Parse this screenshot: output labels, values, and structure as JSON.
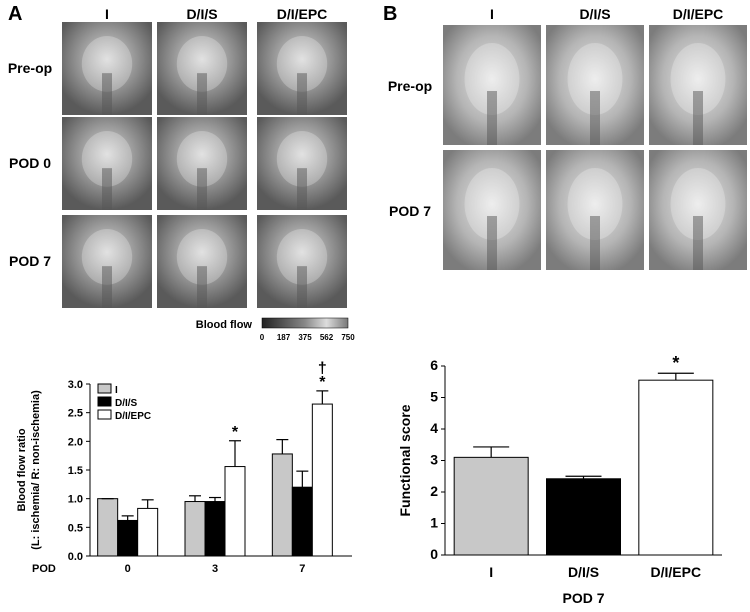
{
  "panel_a": {
    "label": "A",
    "columns": [
      "I",
      "D/I/S",
      "D/I/EPC"
    ],
    "rows": [
      "Pre-op",
      "POD 0",
      "POD 7"
    ],
    "colorbar": {
      "title": "Blood flow",
      "ticks": [
        "0",
        "187",
        "375",
        "562",
        "750"
      ]
    }
  },
  "panel_b": {
    "label": "B",
    "columns": [
      "I",
      "D/I/S",
      "D/I/EPC"
    ],
    "rows": [
      "Pre-op",
      "POD 7"
    ]
  },
  "chart_data": [
    {
      "type": "bar",
      "ylabel": [
        "Blood flow ratio",
        "(L: ischemia/ R: non-ischemia)"
      ],
      "xlabel": "POD",
      "categories": [
        "0",
        "3",
        "7"
      ],
      "series": [
        {
          "name": "I",
          "color": "#c8c8c8",
          "values": [
            1.0,
            0.95,
            1.78
          ],
          "errors": [
            0,
            0.1,
            0.25
          ],
          "annotations": [
            null,
            null,
            null
          ]
        },
        {
          "name": "D/I/S",
          "color": "#000000",
          "values": [
            0.62,
            0.95,
            1.2
          ],
          "errors": [
            0.08,
            0.07,
            0.28
          ],
          "annotations": [
            null,
            null,
            null
          ]
        },
        {
          "name": "D/I/EPC",
          "color": "#ffffff",
          "values": [
            0.83,
            1.56,
            2.65
          ],
          "errors": [
            0.15,
            0.45,
            0.23
          ],
          "annotations": [
            null,
            [
              "*"
            ],
            [
              "*",
              "†"
            ]
          ]
        }
      ],
      "ylim": [
        0,
        3
      ],
      "yticks": [
        {
          "value": 0,
          "label": "0.0"
        },
        {
          "value": 0.5,
          "label": "0.5"
        },
        {
          "value": 1,
          "label": "1.0"
        },
        {
          "value": 1.5,
          "label": "1.5"
        },
        {
          "value": 2,
          "label": "2.0"
        },
        {
          "value": 2.5,
          "label": "2.5"
        },
        {
          "value": 3,
          "label": "3.0"
        }
      ],
      "legend": "upper left"
    },
    {
      "type": "bar",
      "ylabel": [
        "Functional score"
      ],
      "xlabel": "POD 7",
      "categories": [
        "I",
        "D/I/S",
        "D/I/EPC"
      ],
      "values": [
        3.1,
        2.42,
        5.55
      ],
      "errors": [
        0.33,
        0.08,
        0.22
      ],
      "colors": [
        "#c8c8c8",
        "#000000",
        "#ffffff"
      ],
      "annotations": [
        null,
        null,
        "*"
      ],
      "ylim": [
        0,
        6
      ],
      "yticks": [
        0,
        1,
        2,
        3,
        4,
        5,
        6
      ]
    }
  ]
}
